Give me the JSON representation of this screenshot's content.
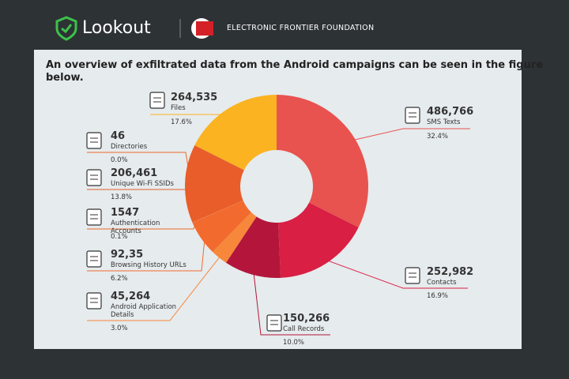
{
  "header": {
    "brand": "Lookout",
    "partner": "ELECTRONIC FRONTIER FOUNDATION"
  },
  "chart_data": {
    "type": "donut",
    "title": "An overview of exfiltrated data from the Android campaigns can be seen in the figure below.",
    "categories": [
      "SMS Texts",
      "Contacts",
      "Call Records",
      "Android Application Details",
      "Browsing History URLs",
      "Authentication Accounts",
      "Directories",
      "Unique Wi-Fi SSIDs",
      "Files"
    ],
    "counts": [
      "486,766",
      "252,982",
      "150,266",
      "45,264",
      "92,35",
      "1547",
      "46",
      "206,461",
      "264,535"
    ],
    "values": [
      32.4,
      16.9,
      10.0,
      3.0,
      6.2,
      0.1,
      0.0,
      13.8,
      17.6
    ],
    "value_labels": [
      "32.4%",
      "16.9%",
      "10.0%",
      "3.0%",
      "6.2%",
      "0.1%",
      "0.0%",
      "13.8%",
      "17.6%"
    ],
    "colors": [
      "#e8534f",
      "#d91f44",
      "#b3163a",
      "#f7873a",
      "#f26a2e",
      "#ee6a2c",
      "#ee6a2c",
      "#e85d2a",
      "#fbb321"
    ]
  }
}
